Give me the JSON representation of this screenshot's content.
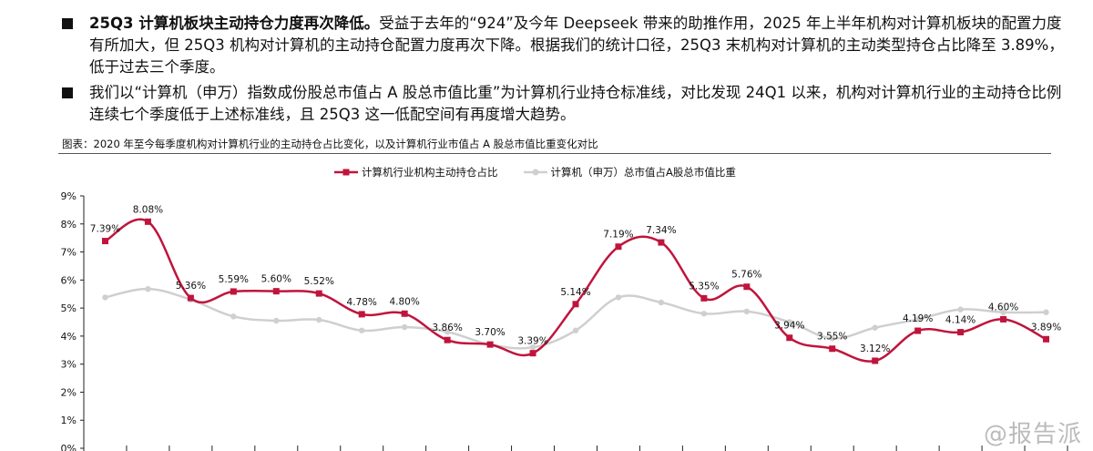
{
  "bullets": [
    {
      "bold": "25Q3 计算机板块主动持仓力度再次降低。",
      "text": "受益于去年的“924”及今年 Deepseek 带来的助推作用，2025 年上半年机构对计算机板块的配置力度有所加大，但 25Q3 机构对计算机的主动持仓配置力度再次下降。根据我们的统计口径，25Q3 末机构对计算机的主动类型持仓占比降至 3.89%，低于过去三个季度。"
    },
    {
      "bold": "",
      "text": "我们以“计算机（申万）指数成份股总市值占 A 股总市值比重”为计算机行业持仓标准线，对比发现 24Q1 以来，机构对计算机行业的主动持仓比例连续七个季度低于上述标准线，且 25Q3 这一低配空间有再度增大趋势。"
    }
  ],
  "caption": "图表：2020 年至今每季度机构对计算机行业的主动持仓占比变化，以及计算机行业市值占 A 股总市值比重变化对比",
  "watermark": "@报告派",
  "chart_data": {
    "type": "line",
    "ylim": [
      0,
      9
    ],
    "yticks": [
      "0%",
      "1%",
      "2%",
      "3%",
      "4%",
      "5%",
      "6%",
      "7%",
      "8%",
      "9%"
    ],
    "legend_position": "top-center",
    "series": [
      {
        "name": "计算机行业机构主动持仓占比",
        "color": "#c0143c",
        "marker": "square",
        "values": [
          7.39,
          8.08,
          5.36,
          5.59,
          5.6,
          5.52,
          4.78,
          4.8,
          3.86,
          3.7,
          3.39,
          5.14,
          7.19,
          7.34,
          5.35,
          5.76,
          3.94,
          3.55,
          3.12,
          4.19,
          4.14,
          4.6,
          3.89
        ],
        "labels": [
          "7.39%",
          "8.08%",
          "5.36%",
          "5.59%",
          "5.60%",
          "5.52%",
          "4.78%",
          "4.80%",
          "3.86%",
          "3.70%",
          "3.39%",
          "5.14%",
          "7.19%",
          "7.34%",
          "5.35%",
          "5.76%",
          "3.94%",
          "3.55%",
          "3.12%",
          "4.19%",
          "4.14%",
          "4.60%",
          "3.89%"
        ]
      },
      {
        "name": "计算机（申万）总市值占A股总市值比重",
        "color": "#cfcfcf",
        "marker": "circle",
        "values": [
          5.38,
          5.68,
          5.3,
          4.7,
          4.55,
          4.58,
          4.2,
          4.32,
          4.15,
          3.7,
          3.6,
          4.2,
          5.38,
          5.2,
          4.8,
          4.88,
          4.5,
          3.92,
          4.3,
          4.6,
          4.95,
          4.85,
          4.85
        ]
      }
    ]
  }
}
